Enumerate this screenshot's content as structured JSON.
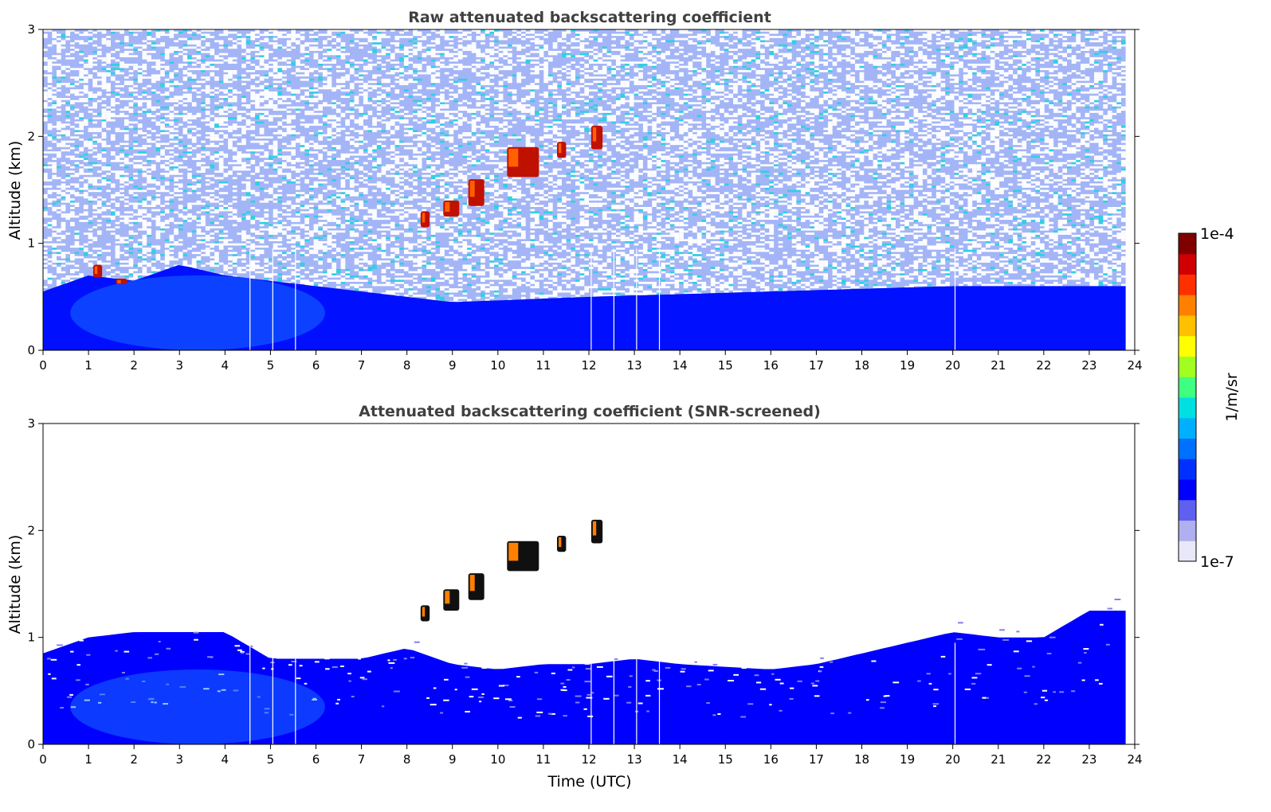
{
  "chart_data": [
    {
      "type": "heatmap",
      "title": "Raw attenuated backscattering coefficient",
      "xlabel": "",
      "ylabel": "Altitude (km)",
      "xlim": [
        0,
        24
      ],
      "ylim": [
        0,
        3
      ],
      "xticks": [
        0,
        1,
        2,
        3,
        4,
        5,
        6,
        7,
        8,
        9,
        10,
        11,
        12,
        13,
        14,
        15,
        16,
        17,
        18,
        19,
        20,
        21,
        22,
        23,
        24
      ],
      "yticks": [
        0,
        1,
        2,
        3
      ],
      "data_end_time": 23.8,
      "dropout_times": [
        4.55,
        5.05,
        5.55,
        12.05,
        12.55,
        13.05,
        13.55,
        20.05
      ],
      "boundary_layer_top_km": [
        {
          "t": 0,
          "z": 0.55
        },
        {
          "t": 1,
          "z": 0.7
        },
        {
          "t": 2,
          "z": 0.65
        },
        {
          "t": 3,
          "z": 0.8
        },
        {
          "t": 4,
          "z": 0.7
        },
        {
          "t": 6,
          "z": 0.6
        },
        {
          "t": 9,
          "z": 0.45
        },
        {
          "t": 12,
          "z": 0.5
        },
        {
          "t": 16,
          "z": 0.55
        },
        {
          "t": 20,
          "z": 0.6
        },
        {
          "t": 23.8,
          "z": 0.6
        }
      ],
      "cloud_features": [
        {
          "t0": 1.1,
          "t1": 1.3,
          "z0": 0.68,
          "z1": 0.8
        },
        {
          "t0": 1.6,
          "t1": 1.85,
          "z0": 0.62,
          "z1": 0.67
        },
        {
          "t0": 8.3,
          "t1": 8.5,
          "z0": 1.15,
          "z1": 1.3
        },
        {
          "t0": 8.8,
          "t1": 9.15,
          "z0": 1.25,
          "z1": 1.4
        },
        {
          "t0": 9.35,
          "t1": 9.7,
          "z0": 1.35,
          "z1": 1.6
        },
        {
          "t0": 10.2,
          "t1": 10.9,
          "z0": 1.62,
          "z1": 1.9
        },
        {
          "t0": 11.3,
          "t1": 11.5,
          "z0": 1.8,
          "z1": 1.95
        },
        {
          "t0": 12.05,
          "t1": 12.3,
          "z0": 1.88,
          "z1": 2.1
        }
      ]
    },
    {
      "type": "heatmap",
      "title": "Attenuated backscattering coefficient (SNR-screened)",
      "xlabel": "Time (UTC)",
      "ylabel": "Altitude (km)",
      "xlim": [
        0,
        24
      ],
      "ylim": [
        0,
        3
      ],
      "xticks": [
        0,
        1,
        2,
        3,
        4,
        5,
        6,
        7,
        8,
        9,
        10,
        11,
        12,
        13,
        14,
        15,
        16,
        17,
        18,
        19,
        20,
        21,
        22,
        23,
        24
      ],
      "yticks": [
        0,
        1,
        2,
        3
      ],
      "data_end_time": 23.8,
      "dropout_times": [
        4.55,
        5.05,
        5.55,
        12.05,
        12.55,
        13.05,
        13.55,
        20.05
      ],
      "screened_top_km": [
        {
          "t": 0,
          "z": 0.85
        },
        {
          "t": 1,
          "z": 1.0
        },
        {
          "t": 2,
          "z": 1.05
        },
        {
          "t": 3,
          "z": 1.05
        },
        {
          "t": 4,
          "z": 1.05
        },
        {
          "t": 5,
          "z": 0.8
        },
        {
          "t": 6,
          "z": 0.8
        },
        {
          "t": 7,
          "z": 0.8
        },
        {
          "t": 8,
          "z": 0.9
        },
        {
          "t": 9,
          "z": 0.75
        },
        {
          "t": 10,
          "z": 0.7
        },
        {
          "t": 11,
          "z": 0.75
        },
        {
          "t": 12,
          "z": 0.75
        },
        {
          "t": 13,
          "z": 0.8
        },
        {
          "t": 14,
          "z": 0.75
        },
        {
          "t": 16,
          "z": 0.7
        },
        {
          "t": 17,
          "z": 0.75
        },
        {
          "t": 18,
          "z": 0.85
        },
        {
          "t": 19,
          "z": 0.95
        },
        {
          "t": 20,
          "z": 1.05
        },
        {
          "t": 21,
          "z": 1.0
        },
        {
          "t": 22,
          "z": 1.0
        },
        {
          "t": 23,
          "z": 1.25
        },
        {
          "t": 23.8,
          "z": 1.25
        }
      ],
      "cloud_features": [
        {
          "t0": 8.3,
          "t1": 8.5,
          "z0": 1.15,
          "z1": 1.3
        },
        {
          "t0": 8.8,
          "t1": 9.15,
          "z0": 1.25,
          "z1": 1.45
        },
        {
          "t0": 9.35,
          "t1": 9.7,
          "z0": 1.35,
          "z1": 1.6
        },
        {
          "t0": 10.2,
          "t1": 10.9,
          "z0": 1.62,
          "z1": 1.9
        },
        {
          "t0": 11.3,
          "t1": 11.5,
          "z0": 1.8,
          "z1": 1.95
        },
        {
          "t0": 12.05,
          "t1": 12.3,
          "z0": 1.88,
          "z1": 2.1
        }
      ]
    }
  ],
  "colorbar": {
    "label": "1/m/sr",
    "max_label": "1e-4",
    "min_label": "1e-7",
    "scale": "log",
    "range": [
      1e-07,
      0.0001
    ],
    "colormap": [
      "#e8e8f8",
      "#b0b0f0",
      "#6060f0",
      "#0000ff",
      "#0030ff",
      "#0070ff",
      "#00b0ff",
      "#00e0e0",
      "#40ff80",
      "#a0ff20",
      "#ffff00",
      "#ffc000",
      "#ff8000",
      "#ff3000",
      "#d00000",
      "#800000"
    ]
  }
}
